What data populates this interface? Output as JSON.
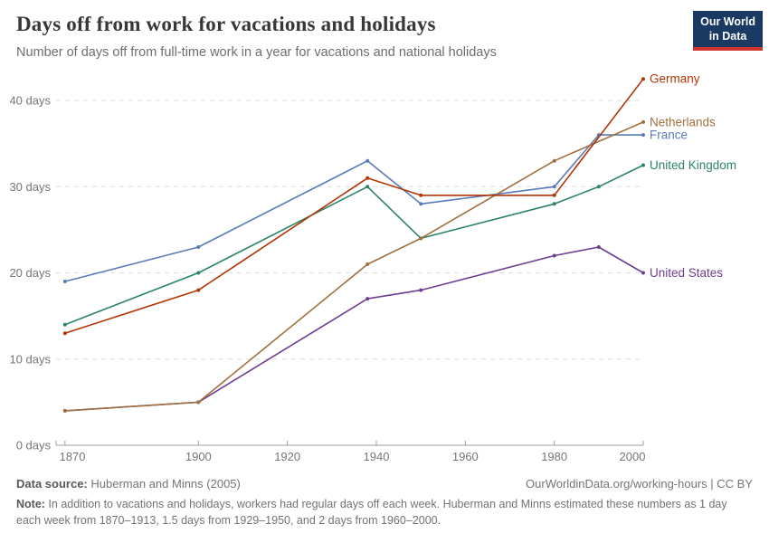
{
  "header": {
    "title": "Days off from work for vacations and holidays",
    "subtitle": "Number of days off from full-time work in a year for vacations and national holidays"
  },
  "logo": {
    "line1": "Our World",
    "line2": "in Data",
    "bg_color": "#1a3a63",
    "accent_color": "#d1332e"
  },
  "chart_data": {
    "type": "line",
    "title": "Days off from work for vacations and holidays",
    "subtitle": "Number of days off from full-time work in a year for vacations and national holidays",
    "xlabel": "",
    "ylabel": "",
    "xlim": [
      1868,
      2000
    ],
    "ylim": [
      0,
      43
    ],
    "grid": true,
    "grid_style": "dashed-horizontal",
    "legend_position": "end-of-line-labels",
    "x_ticks": [
      {
        "value": 1870,
        "label": "1870"
      },
      {
        "value": 1900,
        "label": "1900"
      },
      {
        "value": 1920,
        "label": "1920"
      },
      {
        "value": 1940,
        "label": "1940"
      },
      {
        "value": 1960,
        "label": "1960"
      },
      {
        "value": 1980,
        "label": "1980"
      },
      {
        "value": 2000,
        "label": "2000"
      }
    ],
    "y_ticks": [
      {
        "value": 0,
        "label": "0 days"
      },
      {
        "value": 10,
        "label": "10 days"
      },
      {
        "value": 20,
        "label": "20 days"
      },
      {
        "value": 30,
        "label": "30 days"
      },
      {
        "value": 40,
        "label": "40 days"
      }
    ],
    "series": [
      {
        "name": "Germany",
        "color": "#b13507",
        "points": [
          [
            1870,
            13
          ],
          [
            1900,
            18
          ],
          [
            1938,
            31
          ],
          [
            1950,
            29
          ],
          [
            1980,
            29
          ],
          [
            2000,
            42.5
          ]
        ]
      },
      {
        "name": "Netherlands",
        "color": "#a2703f",
        "points": [
          [
            1870,
            4
          ],
          [
            1900,
            5
          ],
          [
            1938,
            21
          ],
          [
            1950,
            24
          ],
          [
            1980,
            33
          ],
          [
            2000,
            37.5
          ]
        ]
      },
      {
        "name": "France",
        "color": "#5b7bb8",
        "points": [
          [
            1870,
            19
          ],
          [
            1900,
            23
          ],
          [
            1938,
            33
          ],
          [
            1950,
            28
          ],
          [
            1980,
            30
          ],
          [
            1990,
            36
          ],
          [
            2000,
            36
          ]
        ]
      },
      {
        "name": "United Kingdom",
        "color": "#2c8465",
        "points": [
          [
            1870,
            14
          ],
          [
            1900,
            20
          ],
          [
            1938,
            30
          ],
          [
            1950,
            24
          ],
          [
            1980,
            28
          ],
          [
            1990,
            30
          ],
          [
            2000,
            32.5
          ]
        ]
      },
      {
        "name": "United States",
        "color": "#6d3e91",
        "points": [
          [
            1870,
            4
          ],
          [
            1900,
            5
          ],
          [
            1938,
            17
          ],
          [
            1950,
            18
          ],
          [
            1980,
            22
          ],
          [
            1990,
            23
          ],
          [
            2000,
            20
          ]
        ]
      }
    ]
  },
  "footer": {
    "datasource_label": "Data source:",
    "datasource_value": "Huberman and Minns (2005)",
    "attribution_link": "OurWorldinData.org/working-hours",
    "attribution_license": " | CC BY",
    "note_label": "Note:",
    "note_text": " In addition to vacations and holidays, workers had regular days off each week. Huberman and Minns estimated these numbers as 1 day each week from 1870–1913, 1.5 days from 1929–1950, and 2 days from 1960–2000."
  }
}
